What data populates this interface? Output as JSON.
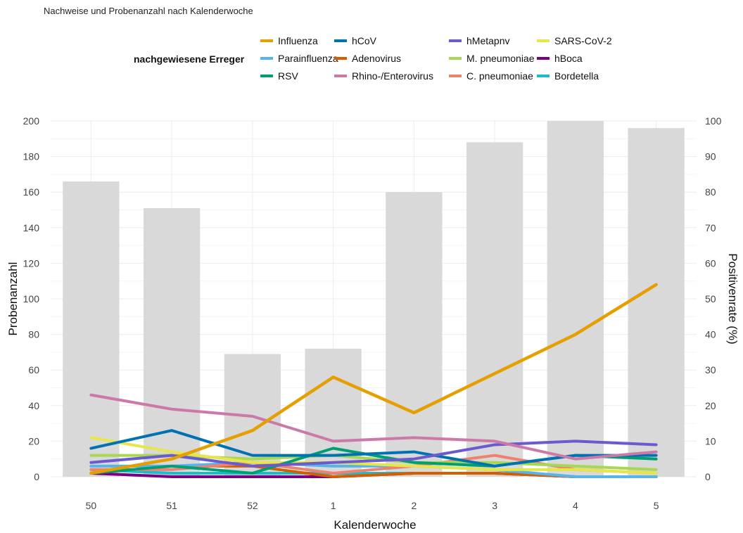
{
  "chart_data": {
    "type": "bar+line",
    "title": "Nachweise und Probenanzahl nach Kalenderwoche",
    "xlabel": "Kalenderwoche",
    "ylabel_left": "Probenanzahl",
    "ylabel_right": "Positivenrate (%)",
    "ylim_left": [
      0,
      200
    ],
    "ylim_right": [
      0,
      100
    ],
    "yticks_left": [
      "0",
      "20",
      "40",
      "60",
      "80",
      "100",
      "120",
      "140",
      "160",
      "180",
      "200"
    ],
    "yticks_right": [
      "0",
      "10",
      "20",
      "30",
      "40",
      "50",
      "60",
      "70",
      "80",
      "90",
      "100"
    ],
    "grid": true,
    "legend_position": "top",
    "legend_title": "nachgewiesene Erreger",
    "categories": [
      "50",
      "51",
      "52",
      "1",
      "2",
      "3",
      "4",
      "5"
    ],
    "bars": {
      "name": "Probenanzahl",
      "color": "#d9d9d9",
      "values": [
        166,
        151,
        69,
        72,
        160,
        188,
        200,
        196
      ]
    },
    "series": [
      {
        "name": "Influenza",
        "color": "#e69f00",
        "values": [
          1,
          5,
          13,
          28,
          18,
          29,
          40,
          54
        ]
      },
      {
        "name": "Parainfluenza",
        "color": "#56b4e9",
        "values": [
          3,
          3,
          4,
          3,
          3,
          2,
          0,
          0
        ]
      },
      {
        "name": "RSV",
        "color": "#009e73",
        "values": [
          1,
          3,
          1,
          8,
          4,
          3,
          6,
          5
        ]
      },
      {
        "name": "hCoV",
        "color": "#0072b2",
        "values": [
          8,
          13,
          6,
          6,
          7,
          3,
          6,
          6
        ]
      },
      {
        "name": "Adenovirus",
        "color": "#d55e00",
        "values": [
          1,
          3,
          3,
          0,
          1,
          1,
          0,
          0
        ]
      },
      {
        "name": "Rhino-/Enterovirus",
        "color": "#cc79a7",
        "values": [
          23,
          19,
          17,
          10,
          11,
          10,
          5,
          7
        ]
      },
      {
        "name": "hMetapnv",
        "color": "#6a5acd",
        "values": [
          4,
          6,
          3,
          4,
          5,
          9,
          10,
          9
        ]
      },
      {
        "name": "M. pneumoniae",
        "color": "#a6d854",
        "values": [
          6,
          6,
          5,
          6,
          4,
          4,
          3,
          2
        ]
      },
      {
        "name": "C. pneumoniae",
        "color": "#f08070",
        "values": [
          2,
          2,
          4,
          1,
          3,
          6,
          2,
          1
        ]
      },
      {
        "name": "SARS-CoV-2",
        "color": "#e6e64a",
        "values": [
          11,
          7,
          4,
          4,
          3,
          2,
          2,
          1
        ]
      },
      {
        "name": "hBoca",
        "color": "#7b0080",
        "values": [
          1,
          0,
          0,
          0,
          1,
          1,
          0,
          0
        ]
      },
      {
        "name": "Bordetella",
        "color": "#17becf",
        "values": [
          2,
          1,
          1,
          1,
          1,
          1,
          0,
          0
        ]
      }
    ]
  }
}
